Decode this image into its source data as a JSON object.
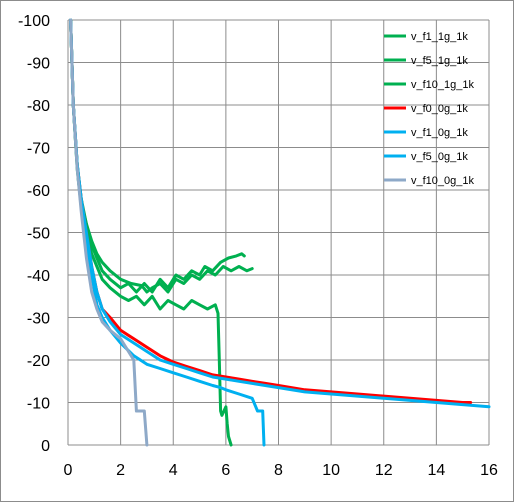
{
  "chart_data": {
    "type": "line",
    "title": "",
    "xlabel": "",
    "ylabel": "",
    "xlim": [
      0,
      16
    ],
    "ylim": [
      0,
      -100
    ],
    "y_axis_reversed": true,
    "grid": true,
    "legend_position": "top-right",
    "x_ticks": [
      "0",
      "2",
      "4",
      "6",
      "8",
      "10",
      "12",
      "14",
      "16"
    ],
    "y_ticks": [
      "-100",
      "-90",
      "-80",
      "-70",
      "-60",
      "-50",
      "-40",
      "-30",
      "-20",
      "-10",
      "0"
    ],
    "series": [
      {
        "name": "v_f1_1g_1k",
        "color": "#00b050",
        "points": [
          [
            0.1,
            -100
          ],
          [
            0.2,
            -80
          ],
          [
            0.3,
            -70
          ],
          [
            0.4,
            -62
          ],
          [
            0.5,
            -57
          ],
          [
            0.7,
            -52
          ],
          [
            0.9,
            -48
          ],
          [
            1.1,
            -45
          ],
          [
            1.3,
            -43
          ],
          [
            1.6,
            -41
          ],
          [
            2.0,
            -39
          ],
          [
            2.4,
            -38
          ],
          [
            2.8,
            -37.5
          ],
          [
            3.0,
            -36
          ],
          [
            3.2,
            -37
          ],
          [
            3.5,
            -38
          ],
          [
            3.8,
            -36
          ],
          [
            4.1,
            -39
          ],
          [
            4.4,
            -38
          ],
          [
            4.7,
            -40
          ],
          [
            5.0,
            -39
          ],
          [
            5.3,
            -41
          ],
          [
            5.6,
            -40
          ],
          [
            5.9,
            -42
          ],
          [
            6.2,
            -41
          ],
          [
            6.5,
            -42
          ],
          [
            6.8,
            -41
          ],
          [
            7.0,
            -41.5
          ]
        ]
      },
      {
        "name": "v_f5_1g_1k",
        "color": "#00b050",
        "points": [
          [
            0.1,
            -100
          ],
          [
            0.2,
            -80
          ],
          [
            0.35,
            -66
          ],
          [
            0.5,
            -58
          ],
          [
            0.7,
            -52
          ],
          [
            0.9,
            -47
          ],
          [
            1.1,
            -44
          ],
          [
            1.3,
            -41
          ],
          [
            1.6,
            -39
          ],
          [
            2.0,
            -37
          ],
          [
            2.3,
            -38
          ],
          [
            2.6,
            -36
          ],
          [
            2.9,
            -38
          ],
          [
            3.2,
            -36
          ],
          [
            3.5,
            -39
          ],
          [
            3.8,
            -37
          ],
          [
            4.1,
            -40
          ],
          [
            4.4,
            -39
          ],
          [
            4.7,
            -41
          ],
          [
            5.0,
            -40
          ],
          [
            5.2,
            -42
          ],
          [
            5.5,
            -41
          ],
          [
            5.8,
            -43
          ],
          [
            6.1,
            -44
          ],
          [
            6.4,
            -44.5
          ],
          [
            6.6,
            -45
          ],
          [
            6.7,
            -44.5
          ]
        ]
      },
      {
        "name": "v_f10_1g_1k",
        "color": "#00b050",
        "points": [
          [
            0.1,
            -100
          ],
          [
            0.2,
            -80
          ],
          [
            0.35,
            -65
          ],
          [
            0.5,
            -56
          ],
          [
            0.7,
            -50
          ],
          [
            0.9,
            -45
          ],
          [
            1.1,
            -42
          ],
          [
            1.3,
            -39
          ],
          [
            1.6,
            -37
          ],
          [
            2.0,
            -35
          ],
          [
            2.3,
            -34
          ],
          [
            2.6,
            -35
          ],
          [
            2.9,
            -33
          ],
          [
            3.2,
            -35
          ],
          [
            3.5,
            -32
          ],
          [
            3.8,
            -34
          ],
          [
            4.1,
            -33
          ],
          [
            4.4,
            -32
          ],
          [
            4.7,
            -34
          ],
          [
            5.0,
            -33
          ],
          [
            5.3,
            -32
          ],
          [
            5.6,
            -33
          ],
          [
            5.7,
            -31
          ],
          [
            5.75,
            -20
          ],
          [
            5.8,
            -8
          ],
          [
            5.85,
            -7
          ],
          [
            6.0,
            -9
          ],
          [
            6.05,
            -5
          ],
          [
            6.1,
            -2
          ],
          [
            6.2,
            0
          ]
        ]
      },
      {
        "name": "v_f0_0g_1k",
        "color": "#ff0000",
        "points": [
          [
            0.1,
            -100
          ],
          [
            0.2,
            -80
          ],
          [
            0.35,
            -66
          ],
          [
            0.5,
            -58
          ],
          [
            0.7,
            -50
          ],
          [
            0.9,
            -42
          ],
          [
            1.1,
            -36
          ],
          [
            1.3,
            -32
          ],
          [
            1.6,
            -30
          ],
          [
            2.0,
            -27
          ],
          [
            2.5,
            -25
          ],
          [
            3.0,
            -23
          ],
          [
            3.5,
            -21
          ],
          [
            4.0,
            -19.5
          ],
          [
            4.5,
            -18.5
          ],
          [
            5.0,
            -17.5
          ],
          [
            5.5,
            -16.5
          ],
          [
            6.0,
            -16
          ],
          [
            6.5,
            -15.5
          ],
          [
            7.0,
            -15
          ],
          [
            7.5,
            -14.5
          ],
          [
            8.0,
            -14
          ],
          [
            9.0,
            -13
          ],
          [
            10.0,
            -12.5
          ],
          [
            11.0,
            -12
          ],
          [
            12.0,
            -11.5
          ],
          [
            13.0,
            -11
          ],
          [
            14.0,
            -10.5
          ],
          [
            15.0,
            -10
          ],
          [
            15.3,
            -10
          ]
        ]
      },
      {
        "name": "v_f1_0g_1k",
        "color": "#00b0f0",
        "points": [
          [
            0.1,
            -100
          ],
          [
            0.2,
            -80
          ],
          [
            0.35,
            -66
          ],
          [
            0.5,
            -58
          ],
          [
            0.7,
            -50
          ],
          [
            0.9,
            -42
          ],
          [
            1.1,
            -36
          ],
          [
            1.3,
            -32
          ],
          [
            1.6,
            -29
          ],
          [
            2.0,
            -26
          ],
          [
            2.5,
            -24
          ],
          [
            3.0,
            -22
          ],
          [
            3.5,
            -20
          ],
          [
            4.0,
            -19
          ],
          [
            4.5,
            -18
          ],
          [
            5.0,
            -17
          ],
          [
            5.5,
            -16
          ],
          [
            6.0,
            -15.5
          ],
          [
            6.5,
            -15
          ],
          [
            7.0,
            -14.5
          ],
          [
            8.0,
            -13.5
          ],
          [
            9.0,
            -12.5
          ],
          [
            10.0,
            -12
          ],
          [
            11.0,
            -11.5
          ],
          [
            12.0,
            -11
          ],
          [
            13.0,
            -10.5
          ],
          [
            14.0,
            -10
          ],
          [
            15.0,
            -9.5
          ],
          [
            16.0,
            -9
          ]
        ]
      },
      {
        "name": "v_f5_0g_1k",
        "color": "#00b0f0",
        "points": [
          [
            0.1,
            -100
          ],
          [
            0.2,
            -80
          ],
          [
            0.35,
            -66
          ],
          [
            0.5,
            -57
          ],
          [
            0.7,
            -48
          ],
          [
            0.9,
            -40
          ],
          [
            1.1,
            -33
          ],
          [
            1.3,
            -30
          ],
          [
            1.6,
            -27
          ],
          [
            2.0,
            -24
          ],
          [
            2.5,
            -21
          ],
          [
            3.0,
            -19
          ],
          [
            3.5,
            -18
          ],
          [
            4.0,
            -17
          ],
          [
            4.5,
            -16
          ],
          [
            5.0,
            -15
          ],
          [
            5.5,
            -14
          ],
          [
            5.8,
            -13.5
          ],
          [
            6.0,
            -13
          ],
          [
            6.5,
            -12
          ],
          [
            7.0,
            -11
          ],
          [
            7.2,
            -8
          ],
          [
            7.4,
            -8
          ],
          [
            7.45,
            0
          ]
        ]
      },
      {
        "name": "v_f10_0g_1k",
        "color": "#8ea9c8",
        "points": [
          [
            0.1,
            -100
          ],
          [
            0.2,
            -80
          ],
          [
            0.35,
            -65
          ],
          [
            0.5,
            -55
          ],
          [
            0.7,
            -44
          ],
          [
            0.9,
            -36
          ],
          [
            1.1,
            -32
          ],
          [
            1.3,
            -29
          ],
          [
            1.6,
            -27
          ],
          [
            2.0,
            -25
          ],
          [
            2.3,
            -22
          ],
          [
            2.5,
            -20
          ],
          [
            2.6,
            -8
          ],
          [
            2.9,
            -8
          ],
          [
            3.0,
            0
          ]
        ]
      }
    ]
  }
}
